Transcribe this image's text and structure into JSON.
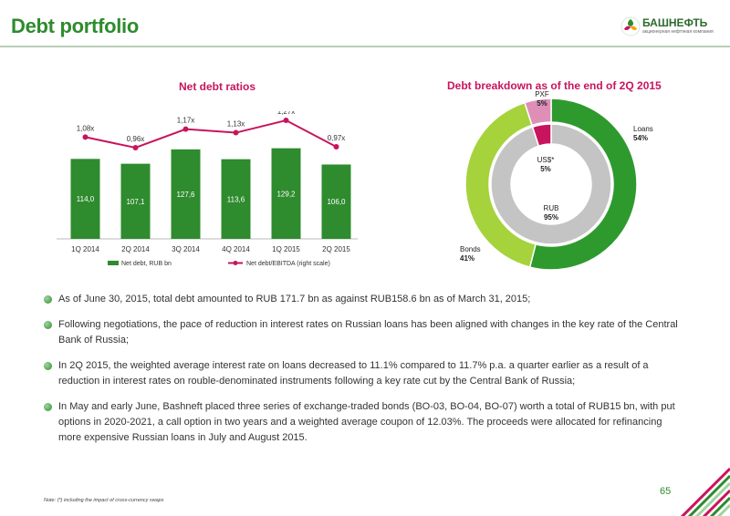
{
  "header": {
    "title": "Debt portfolio",
    "logo_name": "БАШНЕФТЬ",
    "logo_sub": "акционерная нефтяная компания"
  },
  "left_chart": {
    "title": "Net debt ratios"
  },
  "right_chart": {
    "title": "Debt breakdown as of the end of 2Q 2015"
  },
  "chart_data": [
    {
      "type": "bar",
      "title": "Net debt ratios",
      "categories": [
        "1Q 2014",
        "2Q 2014",
        "3Q 2014",
        "4Q 2014",
        "1Q 2015",
        "2Q 2015"
      ],
      "series": [
        {
          "name": "Net debt, RUB bn",
          "type": "bar",
          "values": [
            114.0,
            107.1,
            127.6,
            113.6,
            129.2,
            106.0
          ],
          "labels": [
            "114,0",
            "107,1",
            "127,6",
            "113,6",
            "129,2",
            "106,0"
          ],
          "color": "#2e8b2e"
        },
        {
          "name": "Net debt/EBITDA (right scale)",
          "type": "line",
          "values": [
            1.08,
            0.96,
            1.17,
            1.13,
            1.27,
            0.97
          ],
          "labels": [
            "1,08x",
            "0,96x",
            "1,17x",
            "1,13x",
            "1,27x",
            "0,97x"
          ],
          "color": "#c8145e"
        }
      ],
      "legend": "bottom"
    },
    {
      "type": "pie",
      "title": "Debt breakdown as of the end of 2Q 2015",
      "rings": [
        {
          "ring": "outer",
          "slices": [
            {
              "label": "Loans",
              "value": 54,
              "display": "54%",
              "color": "#2e9a2e"
            },
            {
              "label": "Bonds",
              "value": 41,
              "display": "41%",
              "color": "#a6d23c"
            },
            {
              "label": "PXF",
              "value": 5,
              "display": "5%",
              "color": "#df8fb7"
            }
          ]
        },
        {
          "ring": "inner",
          "slices": [
            {
              "label": "RUB",
              "value": 95,
              "display": "95%",
              "color": "#c4c4c4"
            },
            {
              "label": "US$*",
              "value": 5,
              "display": "5%",
              "color": "#c8145e"
            }
          ]
        }
      ]
    }
  ],
  "bullets": [
    "As of June 30, 2015, total debt amounted to RUB 171.7 bn as against RUB158.6 bn as of March 31, 2015;",
    "Following negotiations, the pace of reduction in interest rates on Russian loans has been aligned with changes in the key rate of the Central Bank of Russia;",
    "In 2Q 2015, the weighted average interest rate on loans decreased to 11.1% compared to 11.7% p.a. a quarter earlier as a result of a reduction in interest rates on rouble-denominated instruments following a key rate cut by the Central Bank of Russia;",
    "In May and early June, Bashneft placed three series of exchange-traded bonds (BO-03, BO-04, BO-07) worth a total of RUB15 bn, with put options in 2020-2021, a call option in two years and a weighted average coupon of 12.03%. The proceeds were allocated for refinancing more expensive Russian loans in July and August 2015."
  ],
  "footer": {
    "note": "Note: (*) including the impact of cross-currency swaps",
    "page": "65"
  }
}
